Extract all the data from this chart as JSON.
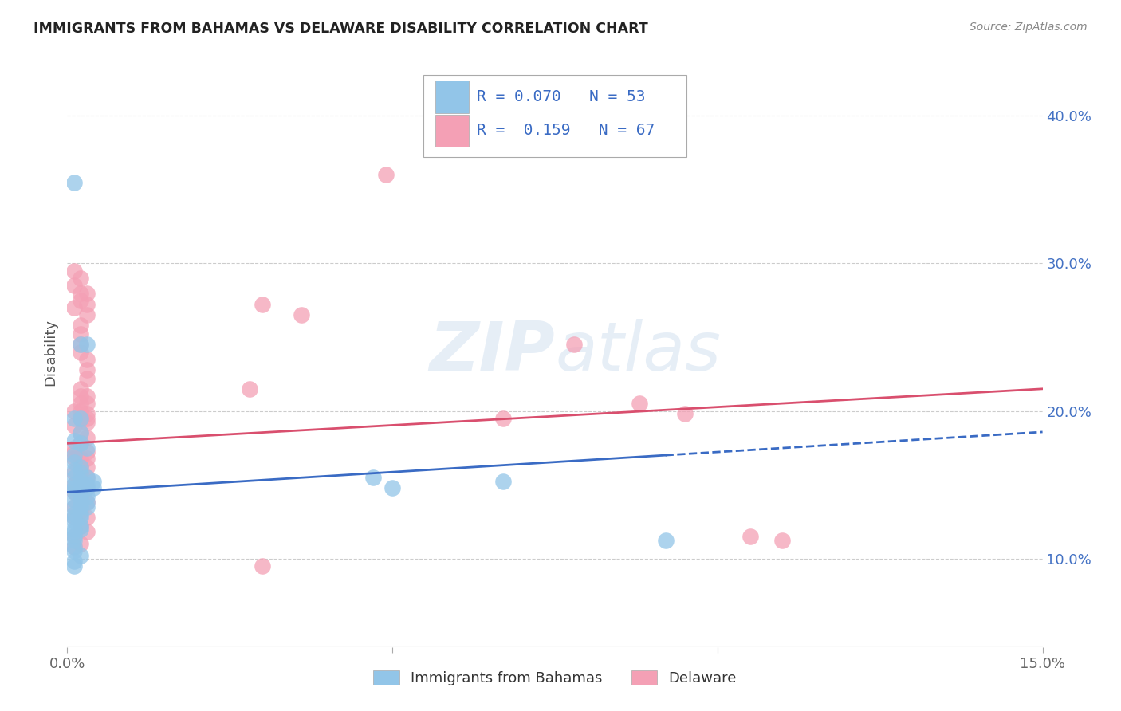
{
  "title": "IMMIGRANTS FROM BAHAMAS VS DELAWARE DISABILITY CORRELATION CHART",
  "source": "Source: ZipAtlas.com",
  "ylabel": "Disability",
  "ytick_vals": [
    0.1,
    0.2,
    0.3,
    0.4
  ],
  "xlim": [
    0.0,
    0.15
  ],
  "ylim": [
    0.04,
    0.44
  ],
  "color_blue": "#92C5E8",
  "color_pink": "#F4A0B5",
  "line_blue": "#3A6BC4",
  "line_pink": "#D94F6E",
  "watermark": "ZIPatlas",
  "blue_scatter": [
    [
      0.001,
      0.355
    ],
    [
      0.002,
      0.245
    ],
    [
      0.003,
      0.245
    ],
    [
      0.001,
      0.195
    ],
    [
      0.002,
      0.195
    ],
    [
      0.002,
      0.185
    ],
    [
      0.001,
      0.18
    ],
    [
      0.002,
      0.178
    ],
    [
      0.003,
      0.175
    ],
    [
      0.001,
      0.17
    ],
    [
      0.001,
      0.165
    ],
    [
      0.002,
      0.162
    ],
    [
      0.001,
      0.16
    ],
    [
      0.002,
      0.158
    ],
    [
      0.001,
      0.155
    ],
    [
      0.003,
      0.155
    ],
    [
      0.002,
      0.152
    ],
    [
      0.001,
      0.15
    ],
    [
      0.003,
      0.15
    ],
    [
      0.001,
      0.148
    ],
    [
      0.002,
      0.148
    ],
    [
      0.003,
      0.148
    ],
    [
      0.001,
      0.145
    ],
    [
      0.002,
      0.142
    ],
    [
      0.003,
      0.142
    ],
    [
      0.001,
      0.14
    ],
    [
      0.002,
      0.138
    ],
    [
      0.003,
      0.138
    ],
    [
      0.001,
      0.135
    ],
    [
      0.002,
      0.135
    ],
    [
      0.003,
      0.135
    ],
    [
      0.001,
      0.13
    ],
    [
      0.002,
      0.13
    ],
    [
      0.001,
      0.128
    ],
    [
      0.002,
      0.128
    ],
    [
      0.001,
      0.125
    ],
    [
      0.002,
      0.122
    ],
    [
      0.001,
      0.12
    ],
    [
      0.002,
      0.12
    ],
    [
      0.001,
      0.118
    ],
    [
      0.001,
      0.115
    ],
    [
      0.001,
      0.112
    ],
    [
      0.001,
      0.108
    ],
    [
      0.001,
      0.105
    ],
    [
      0.002,
      0.102
    ],
    [
      0.001,
      0.098
    ],
    [
      0.001,
      0.095
    ],
    [
      0.004,
      0.152
    ],
    [
      0.004,
      0.148
    ],
    [
      0.047,
      0.155
    ],
    [
      0.05,
      0.148
    ],
    [
      0.067,
      0.152
    ],
    [
      0.092,
      0.112
    ]
  ],
  "pink_scatter": [
    [
      0.049,
      0.36
    ],
    [
      0.001,
      0.295
    ],
    [
      0.001,
      0.285
    ],
    [
      0.002,
      0.29
    ],
    [
      0.002,
      0.28
    ],
    [
      0.002,
      0.275
    ],
    [
      0.001,
      0.27
    ],
    [
      0.002,
      0.258
    ],
    [
      0.002,
      0.252
    ],
    [
      0.003,
      0.28
    ],
    [
      0.003,
      0.272
    ],
    [
      0.003,
      0.265
    ],
    [
      0.002,
      0.245
    ],
    [
      0.002,
      0.24
    ],
    [
      0.03,
      0.272
    ],
    [
      0.036,
      0.265
    ],
    [
      0.003,
      0.235
    ],
    [
      0.003,
      0.228
    ],
    [
      0.003,
      0.222
    ],
    [
      0.028,
      0.215
    ],
    [
      0.002,
      0.215
    ],
    [
      0.002,
      0.21
    ],
    [
      0.003,
      0.21
    ],
    [
      0.002,
      0.205
    ],
    [
      0.003,
      0.205
    ],
    [
      0.002,
      0.2
    ],
    [
      0.001,
      0.2
    ],
    [
      0.003,
      0.198
    ],
    [
      0.003,
      0.195
    ],
    [
      0.002,
      0.195
    ],
    [
      0.003,
      0.192
    ],
    [
      0.001,
      0.19
    ],
    [
      0.002,
      0.185
    ],
    [
      0.003,
      0.182
    ],
    [
      0.002,
      0.178
    ],
    [
      0.001,
      0.175
    ],
    [
      0.001,
      0.172
    ],
    [
      0.003,
      0.172
    ],
    [
      0.001,
      0.168
    ],
    [
      0.002,
      0.168
    ],
    [
      0.003,
      0.168
    ],
    [
      0.002,
      0.162
    ],
    [
      0.003,
      0.162
    ],
    [
      0.001,
      0.158
    ],
    [
      0.002,
      0.155
    ],
    [
      0.003,
      0.155
    ],
    [
      0.001,
      0.15
    ],
    [
      0.002,
      0.148
    ],
    [
      0.003,
      0.148
    ],
    [
      0.001,
      0.145
    ],
    [
      0.002,
      0.142
    ],
    [
      0.003,
      0.138
    ],
    [
      0.001,
      0.135
    ],
    [
      0.002,
      0.132
    ],
    [
      0.003,
      0.128
    ],
    [
      0.001,
      0.128
    ],
    [
      0.002,
      0.122
    ],
    [
      0.003,
      0.118
    ],
    [
      0.001,
      0.115
    ],
    [
      0.002,
      0.11
    ],
    [
      0.001,
      0.108
    ],
    [
      0.03,
      0.095
    ],
    [
      0.067,
      0.195
    ],
    [
      0.078,
      0.245
    ],
    [
      0.088,
      0.205
    ],
    [
      0.095,
      0.198
    ],
    [
      0.105,
      0.115
    ],
    [
      0.11,
      0.112
    ]
  ]
}
